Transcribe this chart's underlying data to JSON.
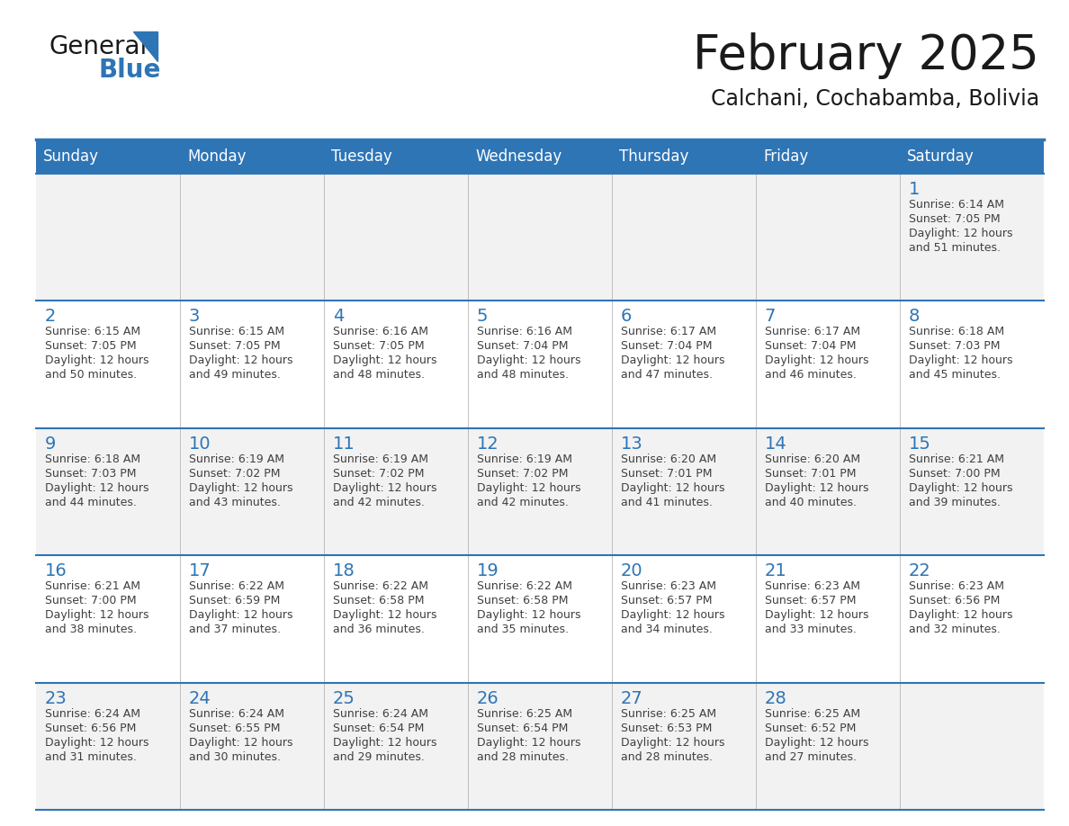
{
  "title": "February 2025",
  "subtitle": "Calchani, Cochabamba, Bolivia",
  "header_bg": "#2E75B6",
  "header_text": "#FFFFFF",
  "cell_bg_odd": "#F2F2F2",
  "cell_bg_even": "#FFFFFF",
  "day_number_color": "#2E75B6",
  "detail_text_color": "#404040",
  "days_of_week": [
    "Sunday",
    "Monday",
    "Tuesday",
    "Wednesday",
    "Thursday",
    "Friday",
    "Saturday"
  ],
  "calendar_data": [
    [
      null,
      null,
      null,
      null,
      null,
      null,
      {
        "day": 1,
        "sunrise": "6:14 AM",
        "sunset": "7:05 PM",
        "daylight1": "Daylight: 12 hours",
        "daylight2": "and 51 minutes."
      }
    ],
    [
      {
        "day": 2,
        "sunrise": "6:15 AM",
        "sunset": "7:05 PM",
        "daylight1": "Daylight: 12 hours",
        "daylight2": "and 50 minutes."
      },
      {
        "day": 3,
        "sunrise": "6:15 AM",
        "sunset": "7:05 PM",
        "daylight1": "Daylight: 12 hours",
        "daylight2": "and 49 minutes."
      },
      {
        "day": 4,
        "sunrise": "6:16 AM",
        "sunset": "7:05 PM",
        "daylight1": "Daylight: 12 hours",
        "daylight2": "and 48 minutes."
      },
      {
        "day": 5,
        "sunrise": "6:16 AM",
        "sunset": "7:04 PM",
        "daylight1": "Daylight: 12 hours",
        "daylight2": "and 48 minutes."
      },
      {
        "day": 6,
        "sunrise": "6:17 AM",
        "sunset": "7:04 PM",
        "daylight1": "Daylight: 12 hours",
        "daylight2": "and 47 minutes."
      },
      {
        "day": 7,
        "sunrise": "6:17 AM",
        "sunset": "7:04 PM",
        "daylight1": "Daylight: 12 hours",
        "daylight2": "and 46 minutes."
      },
      {
        "day": 8,
        "sunrise": "6:18 AM",
        "sunset": "7:03 PM",
        "daylight1": "Daylight: 12 hours",
        "daylight2": "and 45 minutes."
      }
    ],
    [
      {
        "day": 9,
        "sunrise": "6:18 AM",
        "sunset": "7:03 PM",
        "daylight1": "Daylight: 12 hours",
        "daylight2": "and 44 minutes."
      },
      {
        "day": 10,
        "sunrise": "6:19 AM",
        "sunset": "7:02 PM",
        "daylight1": "Daylight: 12 hours",
        "daylight2": "and 43 minutes."
      },
      {
        "day": 11,
        "sunrise": "6:19 AM",
        "sunset": "7:02 PM",
        "daylight1": "Daylight: 12 hours",
        "daylight2": "and 42 minutes."
      },
      {
        "day": 12,
        "sunrise": "6:19 AM",
        "sunset": "7:02 PM",
        "daylight1": "Daylight: 12 hours",
        "daylight2": "and 42 minutes."
      },
      {
        "day": 13,
        "sunrise": "6:20 AM",
        "sunset": "7:01 PM",
        "daylight1": "Daylight: 12 hours",
        "daylight2": "and 41 minutes."
      },
      {
        "day": 14,
        "sunrise": "6:20 AM",
        "sunset": "7:01 PM",
        "daylight1": "Daylight: 12 hours",
        "daylight2": "and 40 minutes."
      },
      {
        "day": 15,
        "sunrise": "6:21 AM",
        "sunset": "7:00 PM",
        "daylight1": "Daylight: 12 hours",
        "daylight2": "and 39 minutes."
      }
    ],
    [
      {
        "day": 16,
        "sunrise": "6:21 AM",
        "sunset": "7:00 PM",
        "daylight1": "Daylight: 12 hours",
        "daylight2": "and 38 minutes."
      },
      {
        "day": 17,
        "sunrise": "6:22 AM",
        "sunset": "6:59 PM",
        "daylight1": "Daylight: 12 hours",
        "daylight2": "and 37 minutes."
      },
      {
        "day": 18,
        "sunrise": "6:22 AM",
        "sunset": "6:58 PM",
        "daylight1": "Daylight: 12 hours",
        "daylight2": "and 36 minutes."
      },
      {
        "day": 19,
        "sunrise": "6:22 AM",
        "sunset": "6:58 PM",
        "daylight1": "Daylight: 12 hours",
        "daylight2": "and 35 minutes."
      },
      {
        "day": 20,
        "sunrise": "6:23 AM",
        "sunset": "6:57 PM",
        "daylight1": "Daylight: 12 hours",
        "daylight2": "and 34 minutes."
      },
      {
        "day": 21,
        "sunrise": "6:23 AM",
        "sunset": "6:57 PM",
        "daylight1": "Daylight: 12 hours",
        "daylight2": "and 33 minutes."
      },
      {
        "day": 22,
        "sunrise": "6:23 AM",
        "sunset": "6:56 PM",
        "daylight1": "Daylight: 12 hours",
        "daylight2": "and 32 minutes."
      }
    ],
    [
      {
        "day": 23,
        "sunrise": "6:24 AM",
        "sunset": "6:56 PM",
        "daylight1": "Daylight: 12 hours",
        "daylight2": "and 31 minutes."
      },
      {
        "day": 24,
        "sunrise": "6:24 AM",
        "sunset": "6:55 PM",
        "daylight1": "Daylight: 12 hours",
        "daylight2": "and 30 minutes."
      },
      {
        "day": 25,
        "sunrise": "6:24 AM",
        "sunset": "6:54 PM",
        "daylight1": "Daylight: 12 hours",
        "daylight2": "and 29 minutes."
      },
      {
        "day": 26,
        "sunrise": "6:25 AM",
        "sunset": "6:54 PM",
        "daylight1": "Daylight: 12 hours",
        "daylight2": "and 28 minutes."
      },
      {
        "day": 27,
        "sunrise": "6:25 AM",
        "sunset": "6:53 PM",
        "daylight1": "Daylight: 12 hours",
        "daylight2": "and 28 minutes."
      },
      {
        "day": 28,
        "sunrise": "6:25 AM",
        "sunset": "6:52 PM",
        "daylight1": "Daylight: 12 hours",
        "daylight2": "and 27 minutes."
      },
      null
    ]
  ],
  "logo_general_color": "#1a1a1a",
  "logo_blue_color": "#2E75B6",
  "line_color": "#2E75B6",
  "title_fontsize": 38,
  "subtitle_fontsize": 17,
  "dow_fontsize": 12,
  "day_num_fontsize": 14,
  "detail_fontsize": 9
}
